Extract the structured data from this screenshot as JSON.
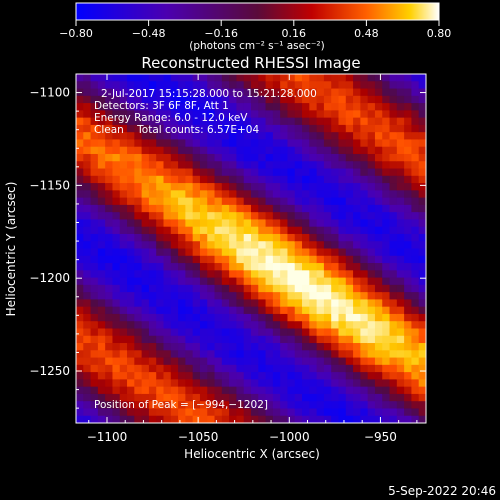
{
  "chart_data": {
    "type": "heatmap",
    "title": "Reconstructed RHESSI Image",
    "xlabel": "Heliocentric X (arcsec)",
    "ylabel": "Heliocentric Y (arcsec)",
    "xlim": [
      -1117,
      -925
    ],
    "ylim": [
      -1278,
      -1090
    ],
    "xticks": [
      -1100,
      -1050,
      -1000,
      -950
    ],
    "yticks": [
      -1100,
      -1150,
      -1200,
      -1250
    ],
    "xtick_labels": [
      "−1100",
      "−1050",
      "−1000",
      "−950"
    ],
    "ytick_labels": [
      "−1100",
      "−1150",
      "−1200",
      "−1250"
    ],
    "colorbar": {
      "min": -0.8,
      "max": 0.8,
      "ticks": [
        -0.8,
        -0.48,
        -0.16,
        0.16,
        0.48,
        0.8
      ],
      "tick_labels": [
        "−0.80",
        "−0.48",
        "−0.16",
        "0.16",
        "0.48",
        "0.80"
      ],
      "units": "(photons cm⁻² s⁻¹ asec⁻²)"
    },
    "annotations": [
      "2-Jul-2017 15:15:28.000 to 15:21:28.000",
      "Detectors: 3F 6F 8F, Att 1",
      "Energy Range: 6.0 - 12.0 keV",
      "Clean    Total counts: 6.57E+04"
    ],
    "peak_label": "Position of Peak = [−994,−1202]",
    "peak": [
      -994,
      -1202
    ],
    "footer": "5-Sep-2022 20:46"
  }
}
